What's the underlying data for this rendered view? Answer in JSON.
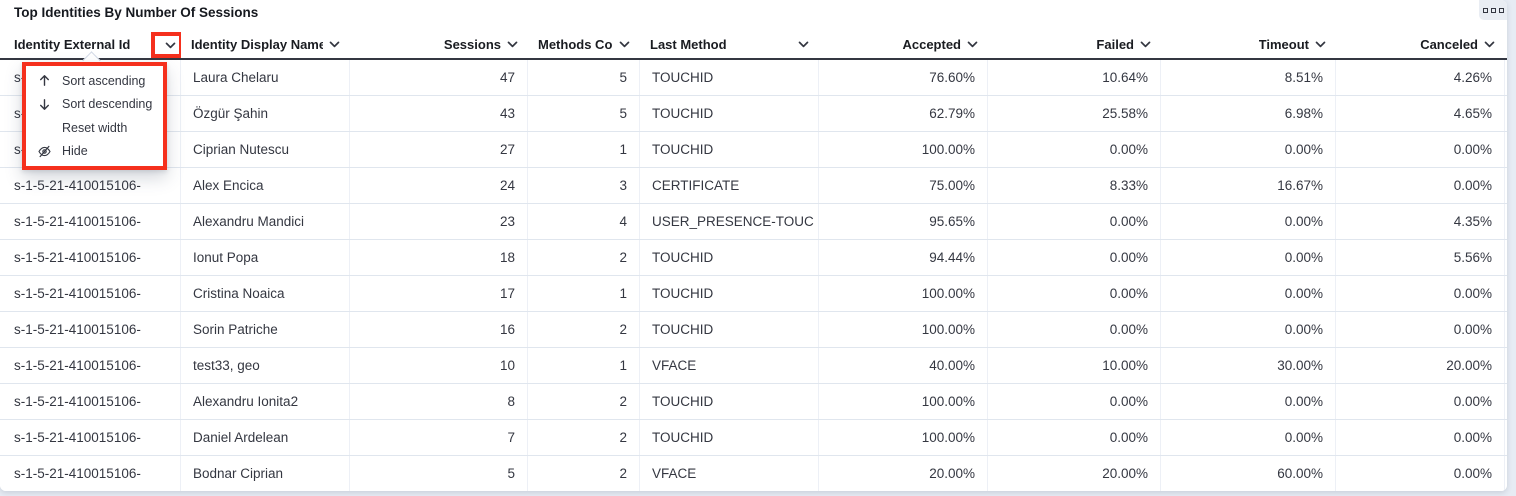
{
  "title": "Top Identities By Number Of Sessions",
  "panel_options": {
    "icon": "panel-options-icon"
  },
  "colors": {
    "highlight_red": "#f5301d",
    "header_border": "#343741",
    "row_border": "#e0e6ee",
    "text": "#343741",
    "header_text": "#1a1c21",
    "badge_bg": "#e9edf3"
  },
  "table": {
    "columns": [
      {
        "key": "external_id",
        "label": "Identity External Id",
        "sort_icon": "chevron-down-icon"
      },
      {
        "key": "display_name",
        "label": "Identity Display Name",
        "sort_icon": "chevron-down-icon"
      },
      {
        "key": "sessions",
        "label": "Sessions",
        "sort_icon": "chevron-down-icon"
      },
      {
        "key": "methods_count",
        "label": "Methods Count",
        "sort_icon": "chevron-down-icon"
      },
      {
        "key": "last_method",
        "label": "Last Method",
        "sort_icon": "chevron-down-icon"
      },
      {
        "key": "accepted",
        "label": "Accepted",
        "sort_icon": "chevron-down-icon"
      },
      {
        "key": "failed",
        "label": "Failed",
        "sort_icon": "chevron-down-icon"
      },
      {
        "key": "timeout",
        "label": "Timeout",
        "sort_icon": "chevron-down-icon"
      },
      {
        "key": "canceled",
        "label": "Canceled",
        "sort_icon": "chevron-down-icon"
      }
    ],
    "rows": [
      {
        "external_id": "s-1-5-21-410015106-",
        "display_name": "Laura Chelaru",
        "sessions": "47",
        "methods_count": "5",
        "last_method": "TOUCHID",
        "accepted": "76.60%",
        "failed": "10.64%",
        "timeout": "8.51%",
        "canceled": "4.26%"
      },
      {
        "external_id": "s-1-5-21-410015106-",
        "display_name": "Özgür Şahin",
        "sessions": "43",
        "methods_count": "5",
        "last_method": "TOUCHID",
        "accepted": "62.79%",
        "failed": "25.58%",
        "timeout": "6.98%",
        "canceled": "4.65%"
      },
      {
        "external_id": "s-1-5-21-410015106-",
        "display_name": "Ciprian Nutescu",
        "sessions": "27",
        "methods_count": "1",
        "last_method": "TOUCHID",
        "accepted": "100.00%",
        "failed": "0.00%",
        "timeout": "0.00%",
        "canceled": "0.00%"
      },
      {
        "external_id": "s-1-5-21-410015106-",
        "display_name": "Alex Encica",
        "sessions": "24",
        "methods_count": "3",
        "last_method": "CERTIFICATE",
        "accepted": "75.00%",
        "failed": "8.33%",
        "timeout": "16.67%",
        "canceled": "0.00%"
      },
      {
        "external_id": "s-1-5-21-410015106-",
        "display_name": "Alexandru Mandici",
        "sessions": "23",
        "methods_count": "4",
        "last_method": "USER_PRESENCE-TOUC",
        "accepted": "95.65%",
        "failed": "0.00%",
        "timeout": "0.00%",
        "canceled": "4.35%"
      },
      {
        "external_id": "s-1-5-21-410015106-",
        "display_name": "Ionut Popa",
        "sessions": "18",
        "methods_count": "2",
        "last_method": "TOUCHID",
        "accepted": "94.44%",
        "failed": "0.00%",
        "timeout": "0.00%",
        "canceled": "5.56%"
      },
      {
        "external_id": "s-1-5-21-410015106-",
        "display_name": "Cristina Noaica",
        "sessions": "17",
        "methods_count": "1",
        "last_method": "TOUCHID",
        "accepted": "100.00%",
        "failed": "0.00%",
        "timeout": "0.00%",
        "canceled": "0.00%"
      },
      {
        "external_id": "s-1-5-21-410015106-",
        "display_name": "Sorin Patriche",
        "sessions": "16",
        "methods_count": "2",
        "last_method": "TOUCHID",
        "accepted": "100.00%",
        "failed": "0.00%",
        "timeout": "0.00%",
        "canceled": "0.00%"
      },
      {
        "external_id": "s-1-5-21-410015106-",
        "display_name": "test33, geo",
        "sessions": "10",
        "methods_count": "1",
        "last_method": "VFACE",
        "accepted": "40.00%",
        "failed": "10.00%",
        "timeout": "30.00%",
        "canceled": "20.00%"
      },
      {
        "external_id": "s-1-5-21-410015106-",
        "display_name": "Alexandru Ionita2",
        "sessions": "8",
        "methods_count": "2",
        "last_method": "TOUCHID",
        "accepted": "100.00%",
        "failed": "0.00%",
        "timeout": "0.00%",
        "canceled": "0.00%"
      },
      {
        "external_id": "s-1-5-21-410015106-",
        "display_name": "Daniel Ardelean",
        "sessions": "7",
        "methods_count": "2",
        "last_method": "TOUCHID",
        "accepted": "100.00%",
        "failed": "0.00%",
        "timeout": "0.00%",
        "canceled": "0.00%"
      },
      {
        "external_id": "s-1-5-21-410015106-",
        "display_name": "Bodnar Ciprian",
        "sessions": "5",
        "methods_count": "2",
        "last_method": "VFACE",
        "accepted": "20.00%",
        "failed": "20.00%",
        "timeout": "60.00%",
        "canceled": "0.00%"
      }
    ]
  },
  "column_menu": {
    "items": [
      {
        "icon": "arrow-up-icon",
        "label": "Sort ascending"
      },
      {
        "icon": "arrow-down-icon",
        "label": "Sort descending"
      },
      {
        "icon": "",
        "label": "Reset width"
      },
      {
        "icon": "eye-slash-icon",
        "label": "Hide"
      }
    ]
  }
}
